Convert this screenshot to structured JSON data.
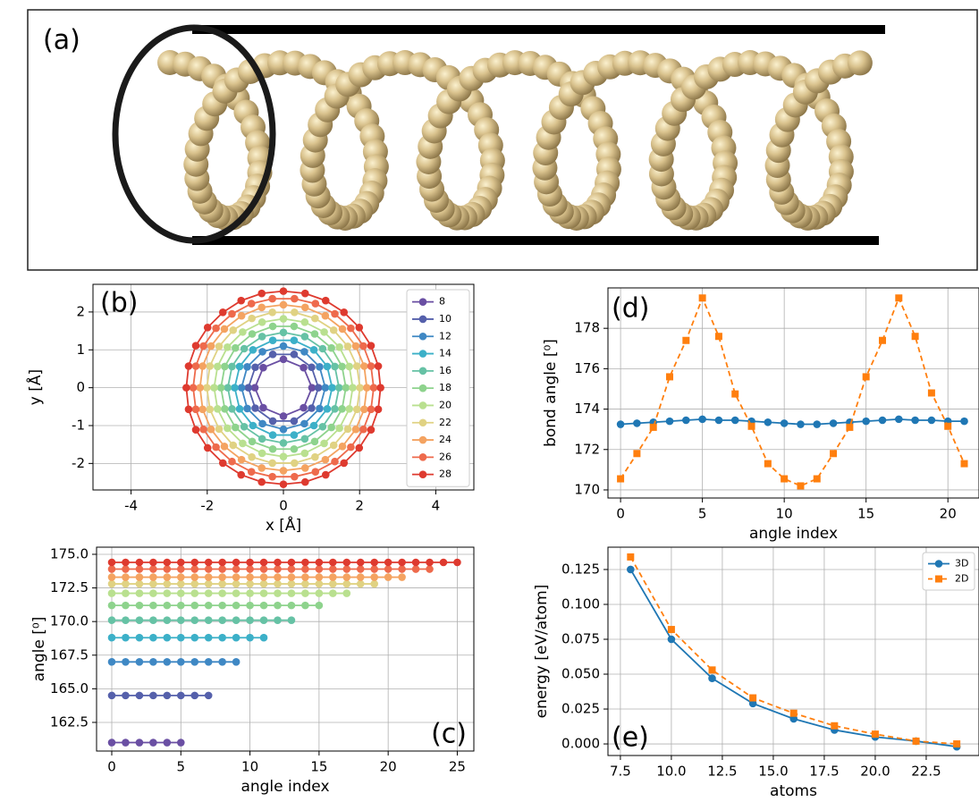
{
  "panel_a": {
    "label": "(a)"
  },
  "chart_data": [
    {
      "type": "line",
      "annotation": "(b)",
      "xlabel": "x [Å]",
      "ylabel": "y [Å]",
      "grid": true,
      "legend": "upper right",
      "closed": true,
      "xlim": [
        -5,
        5
      ],
      "ylim": [
        -2.7,
        2.73
      ],
      "xticks": [
        -4,
        -2,
        0,
        2,
        4
      ],
      "yticks": [
        -2,
        -1,
        0,
        1,
        2
      ],
      "series": [
        {
          "name": "8",
          "color": "#6a4fa3",
          "x": [
            0.75,
            0.53,
            0,
            -0.53,
            -0.75,
            -0.53,
            0,
            0.53
          ],
          "values": [
            0,
            0.53,
            0.75,
            0.53,
            0,
            -0.53,
            -0.75,
            -0.53
          ]
        },
        {
          "name": "10",
          "color": "#5560ab",
          "x": [
            0.92,
            0.74,
            0.28,
            -0.28,
            -0.74,
            -0.92,
            -0.74,
            -0.28,
            0.28,
            0.74
          ],
          "values": [
            0,
            0.54,
            0.88,
            0.88,
            0.54,
            0,
            -0.54,
            -0.88,
            -0.88,
            -0.54
          ]
        },
        {
          "name": "12",
          "color": "#3f88c4",
          "x": [
            1.1,
            0.95,
            0.55,
            0,
            -0.55,
            -0.95,
            -1.1,
            -0.95,
            -0.55,
            0,
            0.55,
            0.95
          ],
          "values": [
            0,
            0.55,
            0.95,
            1.1,
            0.95,
            0.55,
            0,
            -0.55,
            -0.95,
            -1.1,
            -0.95,
            -0.55
          ]
        },
        {
          "name": "14",
          "color": "#3cb0c8",
          "x": [
            1.28,
            1.15,
            0.8,
            0.28,
            -0.28,
            -0.8,
            -1.15,
            -1.28,
            -1.15,
            -0.8,
            -0.28,
            0.28,
            0.8,
            1.15
          ],
          "values": [
            0,
            0.56,
            1.0,
            1.25,
            1.25,
            1.0,
            0.56,
            0,
            -0.56,
            -1.0,
            -1.25,
            -1.25,
            -1.0,
            -0.56
          ]
        },
        {
          "name": "16",
          "color": "#66c2a5",
          "x": [
            1.46,
            1.35,
            1.03,
            0.56,
            0,
            -0.56,
            -1.03,
            -1.35,
            -1.46,
            -1.35,
            -1.03,
            -0.56,
            0,
            0.56,
            1.03,
            1.35
          ],
          "values": [
            0,
            0.56,
            1.03,
            1.35,
            1.46,
            1.35,
            1.03,
            0.56,
            0,
            -0.56,
            -1.03,
            -1.35,
            -1.46,
            -1.35,
            -1.03,
            -0.56
          ]
        },
        {
          "name": "18",
          "color": "#8ed38d",
          "x": [
            1.64,
            1.54,
            1.26,
            0.82,
            0.28,
            -0.28,
            -0.82,
            -1.26,
            -1.54,
            -1.64,
            -1.54,
            -1.26,
            -0.82,
            -0.28,
            0.28,
            0.82,
            1.26,
            1.54
          ],
          "values": [
            0,
            0.56,
            1.05,
            1.42,
            1.62,
            1.62,
            1.42,
            1.05,
            0.56,
            0,
            -0.56,
            -1.05,
            -1.42,
            -1.62,
            -1.62,
            -1.42,
            -1.05,
            -0.56
          ]
        },
        {
          "name": "20",
          "color": "#b9e08f",
          "x": [
            1.82,
            1.73,
            1.47,
            1.07,
            0.56,
            0,
            -0.56,
            -1.07,
            -1.47,
            -1.73,
            -1.82,
            -1.73,
            -1.47,
            -1.07,
            -0.56,
            0,
            0.56,
            1.07,
            1.47,
            1.73
          ],
          "values": [
            0,
            0.56,
            1.07,
            1.47,
            1.73,
            1.82,
            1.73,
            1.47,
            1.07,
            0.56,
            0,
            -0.56,
            -1.07,
            -1.47,
            -1.73,
            -1.82,
            -1.73,
            -1.47,
            -1.07,
            -0.56
          ]
        },
        {
          "name": "22",
          "color": "#e0d283",
          "x": [
            2.01,
            1.93,
            1.69,
            1.32,
            0.83,
            0.29,
            -0.29,
            -0.83,
            -1.32,
            -1.69,
            -1.93,
            -2.01,
            -1.93,
            -1.69,
            -1.32,
            -0.83,
            -0.29,
            0.29,
            0.83,
            1.32,
            1.69,
            1.93
          ],
          "values": [
            0,
            0.57,
            1.09,
            1.52,
            1.83,
            1.99,
            1.99,
            1.83,
            1.52,
            1.09,
            0.57,
            0,
            -0.57,
            -1.09,
            -1.52,
            -1.83,
            -1.99,
            -1.99,
            -1.83,
            -1.52,
            -1.09,
            -0.57
          ]
        },
        {
          "name": "24",
          "color": "#f4a361",
          "x": [
            2.19,
            2.12,
            1.9,
            1.55,
            1.1,
            0.57,
            0,
            -0.57,
            -1.1,
            -1.55,
            -1.9,
            -2.12,
            -2.19,
            -2.12,
            -1.9,
            -1.55,
            -1.1,
            -0.57,
            0,
            0.57,
            1.1,
            1.55,
            1.9,
            2.12
          ],
          "values": [
            0,
            0.57,
            1.1,
            1.55,
            1.9,
            2.12,
            2.19,
            2.12,
            1.9,
            1.55,
            1.1,
            0.57,
            0,
            -0.57,
            -1.1,
            -1.55,
            -1.9,
            -2.12,
            -2.19,
            -2.12,
            -1.9,
            -1.55,
            -1.1,
            -0.57
          ]
        },
        {
          "name": "26",
          "color": "#ee6a4c",
          "x": [
            2.37,
            2.3,
            2.1,
            1.77,
            1.35,
            0.84,
            0.29,
            -0.29,
            -0.84,
            -1.35,
            -1.77,
            -2.1,
            -2.3,
            -2.37,
            -2.3,
            -2.1,
            -1.77,
            -1.35,
            -0.84,
            -0.29,
            0.29,
            0.84,
            1.35,
            1.77,
            2.1,
            2.3
          ],
          "values": [
            0,
            0.57,
            1.1,
            1.57,
            1.95,
            2.22,
            2.35,
            2.35,
            2.22,
            1.95,
            1.57,
            1.1,
            0.57,
            0,
            -0.57,
            -1.1,
            -1.57,
            -1.95,
            -2.22,
            -2.35,
            -2.35,
            -2.22,
            -1.95,
            -1.57,
            -1.1,
            -0.57
          ]
        },
        {
          "name": "28",
          "color": "#de3a2f",
          "x": [
            2.55,
            2.49,
            2.3,
            1.99,
            1.59,
            1.11,
            0.57,
            0,
            -0.57,
            -1.11,
            -1.59,
            -1.99,
            -2.3,
            -2.49,
            -2.55,
            -2.49,
            -2.3,
            -1.99,
            -1.59,
            -1.11,
            -0.57,
            0,
            0.57,
            1.11,
            1.59,
            1.99,
            2.3,
            2.49
          ],
          "values": [
            0,
            0.57,
            1.11,
            1.59,
            1.99,
            2.3,
            2.49,
            2.55,
            2.49,
            2.3,
            1.99,
            1.59,
            1.11,
            0.57,
            0,
            -0.57,
            -1.11,
            -1.59,
            -1.99,
            -2.3,
            -2.49,
            -2.55,
            -2.49,
            -2.3,
            -1.99,
            -1.59,
            -1.11,
            -0.57
          ]
        }
      ]
    },
    {
      "type": "line",
      "annotation": "(c)",
      "xlabel": "angle index",
      "ylabel": "angle [⁰]",
      "grid": true,
      "xlim": [
        -1.1,
        26.2
      ],
      "ylim": [
        160.37,
        175.53
      ],
      "xticks": [
        0,
        5,
        10,
        15,
        20,
        25
      ],
      "yticks": [
        162.5,
        {
          "value": 165,
          "label": "165.0"
        },
        167.5,
        {
          "value": 170,
          "label": "170.0"
        },
        172.5,
        {
          "value": 175,
          "label": "175.0"
        }
      ],
      "series": [
        {
          "color": "#6a4fa3",
          "values": [
            161,
            161,
            161,
            161,
            161,
            161
          ]
        },
        {
          "color": "#5560ab",
          "values": [
            164.5,
            164.5,
            164.5,
            164.5,
            164.5,
            164.5,
            164.5,
            164.5
          ]
        },
        {
          "color": "#3f88c4",
          "values": [
            167,
            167,
            167,
            167,
            167,
            167,
            167,
            167,
            167,
            167
          ]
        },
        {
          "color": "#3cb0c8",
          "values": [
            168.8,
            168.8,
            168.8,
            168.8,
            168.8,
            168.8,
            168.8,
            168.8,
            168.8,
            168.8,
            168.8,
            168.8
          ]
        },
        {
          "color": "#66c2a5",
          "values": [
            170.1,
            170.1,
            170.1,
            170.1,
            170.1,
            170.1,
            170.1,
            170.1,
            170.1,
            170.1,
            170.1,
            170.1,
            170.1,
            170.1
          ]
        },
        {
          "color": "#8ed38d",
          "values": [
            171.2,
            171.2,
            171.2,
            171.2,
            171.2,
            171.2,
            171.2,
            171.2,
            171.2,
            171.2,
            171.2,
            171.2,
            171.2,
            171.2,
            171.2,
            171.2
          ]
        },
        {
          "color": "#b9e08f",
          "values": [
            172.1,
            172.1,
            172.1,
            172.1,
            172.1,
            172.1,
            172.1,
            172.1,
            172.1,
            172.1,
            172.1,
            172.1,
            172.1,
            172.1,
            172.1,
            172.1,
            172.1,
            172.1
          ]
        },
        {
          "color": "#e0d283",
          "values": [
            172.8,
            172.8,
            172.8,
            172.8,
            172.8,
            172.8,
            172.8,
            172.8,
            172.8,
            172.8,
            172.8,
            172.8,
            172.8,
            172.8,
            172.8,
            172.8,
            172.8,
            172.8,
            172.8,
            172.8
          ]
        },
        {
          "color": "#f4a361",
          "values": [
            173.3,
            173.3,
            173.3,
            173.3,
            173.3,
            173.3,
            173.3,
            173.3,
            173.3,
            173.3,
            173.3,
            173.3,
            173.3,
            173.3,
            173.3,
            173.3,
            173.3,
            173.3,
            173.3,
            173.3,
            173.3,
            173.3
          ]
        },
        {
          "color": "#ee6a4c",
          "values": [
            173.9,
            173.9,
            173.9,
            173.9,
            173.9,
            173.9,
            173.9,
            173.9,
            173.9,
            173.9,
            173.9,
            173.9,
            173.9,
            173.9,
            173.9,
            173.9,
            173.9,
            173.9,
            173.9,
            173.9,
            173.9,
            173.9,
            173.9,
            173.9
          ]
        },
        {
          "color": "#de3a2f",
          "values": [
            174.4,
            174.4,
            174.4,
            174.4,
            174.4,
            174.4,
            174.4,
            174.4,
            174.4,
            174.4,
            174.4,
            174.4,
            174.4,
            174.4,
            174.4,
            174.4,
            174.4,
            174.4,
            174.4,
            174.4,
            174.4,
            174.4,
            174.4,
            174.4,
            174.4,
            174.4
          ]
        }
      ]
    },
    {
      "type": "line",
      "annotation": "(d)",
      "xlabel": "angle index",
      "ylabel": "bond angle [⁰]",
      "grid": true,
      "xlim": [
        -0.77,
        21.9
      ],
      "ylim": [
        169.6,
        180
      ],
      "xticks": [
        0,
        5,
        10,
        15,
        20
      ],
      "yticks": [
        170,
        172,
        174,
        176,
        178
      ],
      "series": [
        {
          "color": "#1f77b4",
          "marker": "circle",
          "linestyle": "solid",
          "values": [
            173.25,
            173.3,
            173.35,
            173.4,
            173.45,
            173.5,
            173.45,
            173.45,
            173.4,
            173.35,
            173.3,
            173.25,
            173.25,
            173.3,
            173.35,
            173.4,
            173.45,
            173.5,
            173.45,
            173.45,
            173.4,
            173.4
          ]
        },
        {
          "color": "#ff7f0e",
          "marker": "square",
          "linestyle": "dashed",
          "values": [
            170.55,
            171.8,
            173.1,
            175.6,
            177.4,
            179.5,
            177.6,
            174.75,
            173.15,
            171.3,
            170.55,
            170.2,
            170.55,
            171.8,
            173.1,
            175.6,
            177.4,
            179.5,
            177.6,
            174.8,
            173.15,
            171.3
          ]
        }
      ]
    },
    {
      "type": "line",
      "annotation": "(e)",
      "xlabel": "atoms",
      "ylabel": "energy [eV/atom]",
      "grid": true,
      "legend": "upper right",
      "xlim": [
        6.89,
        25.09
      ],
      "ylim": [
        -0.0083,
        0.141
      ],
      "xticks": [
        7.5,
        {
          "value": 10,
          "label": "10.0"
        },
        12.5,
        {
          "value": 15,
          "label": "15.0"
        },
        17.5,
        {
          "value": 20,
          "label": "20.0"
        },
        22.5
      ],
      "yticks": [
        {
          "value": 0,
          "label": "0.000"
        },
        0.025,
        {
          "value": 0.05,
          "label": "0.050"
        },
        0.075,
        {
          "value": 0.1,
          "label": "0.100"
        },
        0.125
      ],
      "series": [
        {
          "name": "3D",
          "color": "#1f77b4",
          "marker": "circle",
          "linestyle": "solid",
          "x": [
            8,
            10,
            12,
            14,
            16,
            18,
            20,
            22,
            24
          ],
          "values": [
            0.125,
            0.075,
            0.047,
            0.029,
            0.018,
            0.01,
            0.005,
            0.002,
            -0.002
          ]
        },
        {
          "name": "2D",
          "color": "#ff7f0e",
          "marker": "square",
          "linestyle": "dashed",
          "x": [
            8,
            10,
            12,
            14,
            16,
            18,
            20,
            22,
            24
          ],
          "values": [
            0.134,
            0.082,
            0.053,
            0.033,
            0.022,
            0.013,
            0.007,
            0.002,
            0.0
          ]
        }
      ]
    }
  ]
}
